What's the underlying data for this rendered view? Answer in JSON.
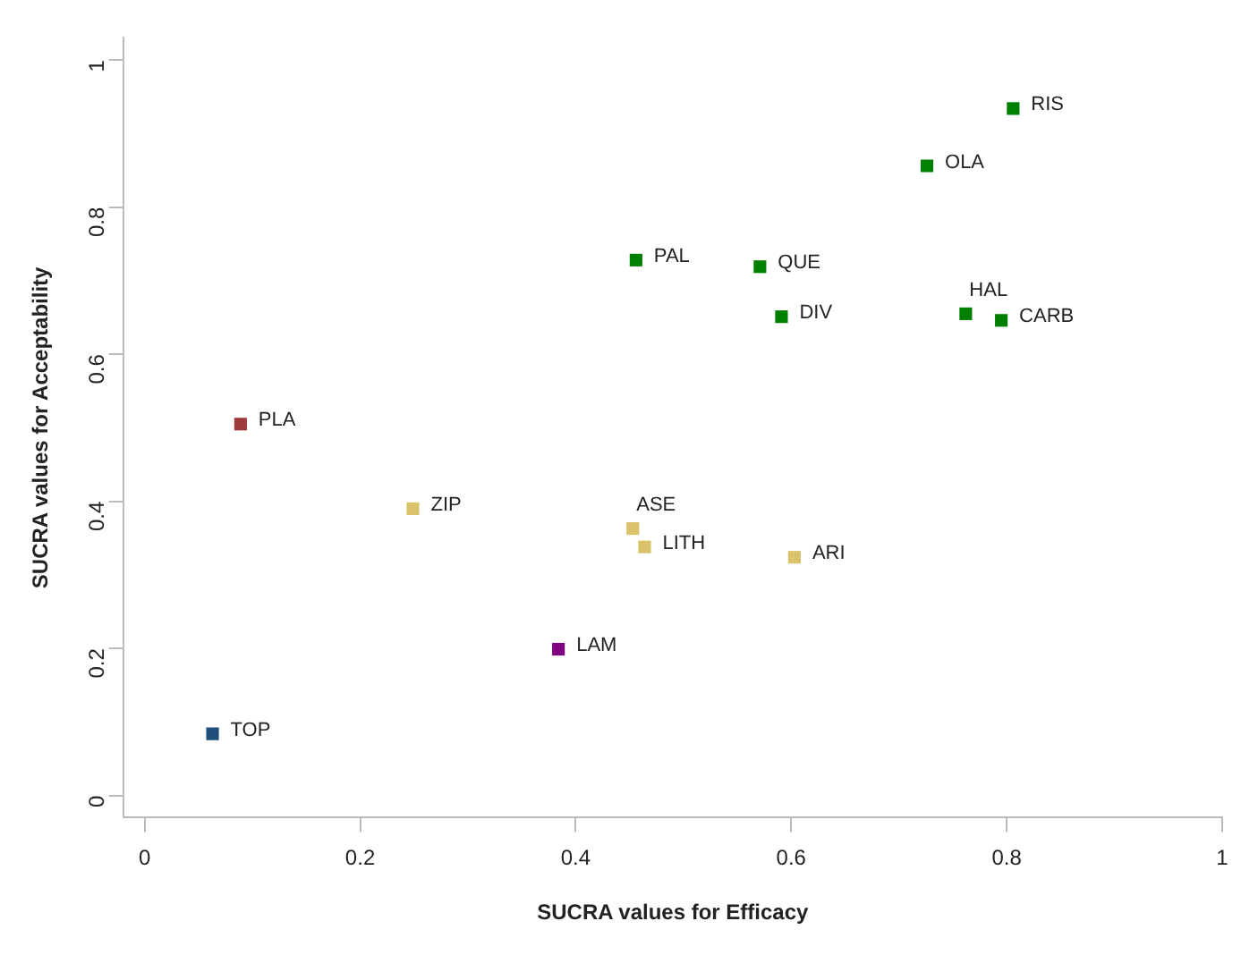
{
  "chart_data": {
    "type": "scatter",
    "xlabel": "SUCRA values for Efficacy",
    "ylabel": "SUCRA values for Acceptability",
    "x": [
      0.806,
      0.726,
      0.456,
      0.571,
      0.591,
      0.762,
      0.795,
      0.089,
      0.249,
      0.453,
      0.464,
      0.603,
      0.384,
      0.063
    ],
    "values": [
      0.934,
      0.856,
      0.728,
      0.719,
      0.651,
      0.655,
      0.646,
      0.505,
      0.39,
      0.363,
      0.338,
      0.324,
      0.199,
      0.084
    ],
    "colors": [
      "#008000",
      "#008000",
      "#008000",
      "#008000",
      "#008000",
      "#008000",
      "#008000",
      "#9e3a3a",
      "#d9c26a",
      "#d9c26a",
      "#d9c26a",
      "#d9c26a",
      "#800080",
      "#1f4e79"
    ],
    "marker": "square",
    "annotations": [
      {
        "text": "RIS",
        "x": 0.806,
        "y": 0.934
      },
      {
        "text": "OLA",
        "x": 0.726,
        "y": 0.856
      },
      {
        "text": "PAL",
        "x": 0.456,
        "y": 0.728
      },
      {
        "text": "QUE",
        "x": 0.571,
        "y": 0.719
      },
      {
        "text": "DIV",
        "x": 0.591,
        "y": 0.651
      },
      {
        "text": "HAL",
        "x": 0.762,
        "y": 0.655
      },
      {
        "text": "CARB",
        "x": 0.795,
        "y": 0.646
      },
      {
        "text": "PLA",
        "x": 0.089,
        "y": 0.505
      },
      {
        "text": "ZIP",
        "x": 0.249,
        "y": 0.39
      },
      {
        "text": "ASE",
        "x": 0.453,
        "y": 0.363
      },
      {
        "text": "LITH",
        "x": 0.464,
        "y": 0.338
      },
      {
        "text": "ARI",
        "x": 0.603,
        "y": 0.324
      },
      {
        "text": "LAM",
        "x": 0.384,
        "y": 0.199
      },
      {
        "text": "TOP",
        "x": 0.063,
        "y": 0.084
      }
    ],
    "xlim": [
      -0.02,
      1.0
    ],
    "ylim": [
      -0.03,
      1.03
    ],
    "xticks": [
      0,
      0.2,
      0.4,
      0.6,
      0.8,
      1
    ],
    "yticks": [
      0,
      0.2,
      0.4,
      0.6,
      0.8,
      1
    ]
  }
}
